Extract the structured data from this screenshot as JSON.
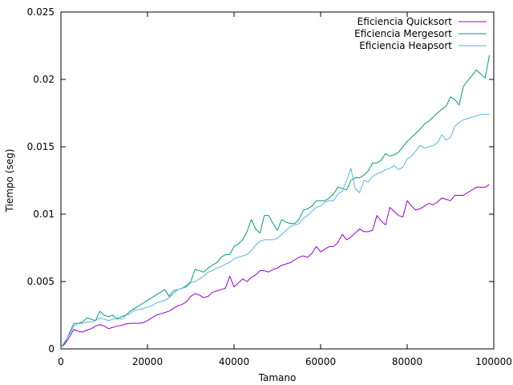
{
  "chart_data": {
    "type": "line",
    "title": "",
    "xlabel": "Tamano",
    "ylabel": "Tiempo (seg)",
    "xlim": [
      0,
      100000
    ],
    "ylim": [
      0,
      0.025
    ],
    "x_ticks": [
      0,
      20000,
      40000,
      60000,
      80000,
      100000
    ],
    "x_tick_labels": [
      "0",
      "20000",
      "40000",
      "60000",
      "80000",
      "100000"
    ],
    "y_ticks": [
      0,
      0.005,
      0.01,
      0.015,
      0.02,
      0.025
    ],
    "y_tick_labels": [
      "0",
      "0.005",
      "0.01",
      "0.015",
      "0.02",
      "0.025"
    ],
    "grid": false,
    "legend_position": "top-right",
    "x": [
      0,
      1000,
      2000,
      3000,
      4000,
      5000,
      6000,
      7000,
      8000,
      9000,
      10000,
      11000,
      12000,
      13000,
      14000,
      15000,
      16000,
      17000,
      18000,
      19000,
      20000,
      21000,
      22000,
      23000,
      24000,
      25000,
      26000,
      27000,
      28000,
      29000,
      30000,
      31000,
      32000,
      33000,
      34000,
      35000,
      36000,
      37000,
      38000,
      39000,
      40000,
      41000,
      42000,
      43000,
      44000,
      45000,
      46000,
      47000,
      48000,
      49000,
      50000,
      51000,
      52000,
      53000,
      54000,
      55000,
      56000,
      57000,
      58000,
      59000,
      60000,
      61000,
      62000,
      63000,
      64000,
      65000,
      66000,
      67000,
      68000,
      69000,
      70000,
      71000,
      72000,
      73000,
      74000,
      75000,
      76000,
      77000,
      78000,
      79000,
      80000,
      81000,
      82000,
      83000,
      84000,
      85000,
      86000,
      87000,
      88000,
      89000,
      90000,
      91000,
      92000,
      93000,
      94000,
      95000,
      96000,
      97000,
      98000,
      99000
    ],
    "series": [
      {
        "name": "Eficiencia Quicksort",
        "color": "#9400d3",
        "values": [
          0.0001,
          0.0004,
          0.0009,
          0.00145,
          0.0013,
          0.00125,
          0.0014,
          0.0015,
          0.0017,
          0.0018,
          0.0017,
          0.0015,
          0.0016,
          0.0017,
          0.00175,
          0.00185,
          0.0019,
          0.0019,
          0.0019,
          0.00195,
          0.0021,
          0.0023,
          0.0025,
          0.0026,
          0.0027,
          0.0028,
          0.003,
          0.0032,
          0.0033,
          0.0035,
          0.0039,
          0.0041,
          0.004,
          0.0038,
          0.0039,
          0.0042,
          0.0043,
          0.0044,
          0.0045,
          0.0054,
          0.0046,
          0.0049,
          0.0052,
          0.005,
          0.0053,
          0.0055,
          0.0058,
          0.0058,
          0.0057,
          0.0059,
          0.006,
          0.0062,
          0.0063,
          0.0064,
          0.0066,
          0.0068,
          0.0069,
          0.0068,
          0.0071,
          0.0076,
          0.0072,
          0.0074,
          0.0076,
          0.0076,
          0.0079,
          0.0085,
          0.0081,
          0.0083,
          0.0086,
          0.0089,
          0.0087,
          0.0087,
          0.0088,
          0.0099,
          0.0095,
          0.0092,
          0.0105,
          0.0102,
          0.0099,
          0.0098,
          0.011,
          0.0106,
          0.0103,
          0.0104,
          0.0106,
          0.0108,
          0.0107,
          0.0109,
          0.0112,
          0.0111,
          0.011,
          0.0114,
          0.0114,
          0.0114,
          0.0116,
          0.0118,
          0.012,
          0.012,
          0.012,
          0.0122
        ]
      },
      {
        "name": "Eficiencia Mergesort",
        "color": "#009e73",
        "values": [
          0.0001,
          0.0005,
          0.0012,
          0.0019,
          0.0019,
          0.002,
          0.0023,
          0.0022,
          0.0021,
          0.0028,
          0.0025,
          0.0024,
          0.0025,
          0.0022,
          0.0024,
          0.0025,
          0.0028,
          0.003,
          0.0032,
          0.0034,
          0.0036,
          0.0038,
          0.004,
          0.0042,
          0.0044,
          0.0039,
          0.0043,
          0.0044,
          0.0045,
          0.0047,
          0.005,
          0.0059,
          0.0058,
          0.0057,
          0.006,
          0.0062,
          0.0064,
          0.0068,
          0.007,
          0.007,
          0.0076,
          0.0078,
          0.0081,
          0.0087,
          0.0096,
          0.0089,
          0.0086,
          0.0099,
          0.0099,
          0.0093,
          0.0088,
          0.0096,
          0.0094,
          0.0093,
          0.0093,
          0.0096,
          0.0103,
          0.0104,
          0.0106,
          0.011,
          0.011,
          0.011,
          0.0112,
          0.0115,
          0.012,
          0.0119,
          0.0118,
          0.0125,
          0.0127,
          0.0127,
          0.0129,
          0.0132,
          0.0138,
          0.0138,
          0.014,
          0.0145,
          0.0143,
          0.0144,
          0.0146,
          0.015,
          0.0154,
          0.0157,
          0.016,
          0.0163,
          0.0167,
          0.0169,
          0.0172,
          0.0175,
          0.0178,
          0.018,
          0.0187,
          0.0185,
          0.0181,
          0.0195,
          0.0199,
          0.0203,
          0.0207,
          0.0204,
          0.0201,
          0.0218
        ]
      },
      {
        "name": "Eficiencia Heapsort",
        "color": "#56b4e9",
        "values": [
          0.0001,
          0.0006,
          0.0011,
          0.0017,
          0.0019,
          0.0019,
          0.002,
          0.002,
          0.0021,
          0.0023,
          0.0022,
          0.0021,
          0.0022,
          0.0023,
          0.0022,
          0.0025,
          0.0026,
          0.0029,
          0.0029,
          0.003,
          0.0031,
          0.0032,
          0.0034,
          0.0035,
          0.0036,
          0.0038,
          0.0041,
          0.0044,
          0.0045,
          0.0046,
          0.0049,
          0.005,
          0.0052,
          0.0054,
          0.0057,
          0.0058,
          0.006,
          0.0061,
          0.0063,
          0.0064,
          0.0067,
          0.0068,
          0.0069,
          0.007,
          0.0073,
          0.0077,
          0.008,
          0.0081,
          0.0081,
          0.0081,
          0.0082,
          0.0085,
          0.0088,
          0.0091,
          0.0092,
          0.0093,
          0.0097,
          0.0099,
          0.0102,
          0.0105,
          0.0106,
          0.0109,
          0.011,
          0.011,
          0.0115,
          0.0117,
          0.0125,
          0.0134,
          0.0119,
          0.0116,
          0.0125,
          0.0124,
          0.0128,
          0.013,
          0.0131,
          0.0133,
          0.0134,
          0.0136,
          0.0133,
          0.0135,
          0.0141,
          0.0143,
          0.0147,
          0.0151,
          0.0149,
          0.015,
          0.0151,
          0.0153,
          0.0159,
          0.0155,
          0.0157,
          0.0165,
          0.0168,
          0.017,
          0.0171,
          0.0172,
          0.0173,
          0.0174,
          0.0174,
          0.0174
        ]
      }
    ]
  }
}
